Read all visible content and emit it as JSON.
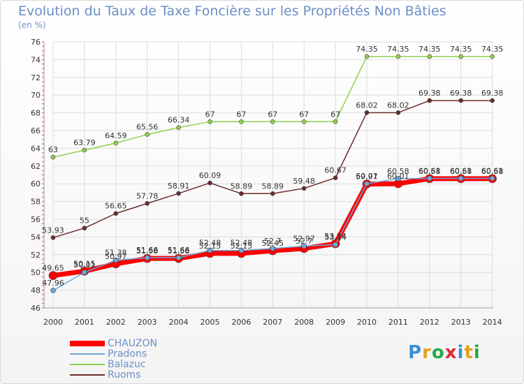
{
  "header": {
    "title": "Evolution du Taux de Taxe Foncière sur les Propriétés Non Bâties",
    "unit": "(en %)"
  },
  "logo": {
    "text": "Proxiti"
  },
  "chart_data": {
    "type": "line",
    "title": "Evolution du Taux de Taxe Foncière sur les Propriétés Non Bâties",
    "ylabel": "(en %)",
    "xlabel": "",
    "ylim": [
      46,
      76
    ],
    "yticks": [
      46,
      48,
      50,
      52,
      54,
      56,
      58,
      60,
      62,
      64,
      66,
      68,
      70,
      72,
      74,
      76
    ],
    "categories": [
      "2000",
      "2001",
      "2002",
      "2003",
      "2004",
      "2005",
      "2006",
      "2007",
      "2008",
      "2009",
      "2010",
      "2011",
      "2012",
      "2013",
      "2014"
    ],
    "series": [
      {
        "name": "CHAUZON",
        "color": "#ff0000",
        "values": [
          49.65,
          50.15,
          50.97,
          51.58,
          51.58,
          52.15,
          52.15,
          52.45,
          52.7,
          53.24,
          59.97,
          60.01,
          60.58,
          60.58,
          60.58
        ],
        "labels": [
          "49.65",
          "50.15",
          "50.97",
          "51.58",
          "51.58",
          "52.15",
          "52.15",
          "52.45",
          "52.7",
          "53.24",
          "59.97",
          "60.01",
          "60.58",
          "60.58",
          "60.58"
        ]
      },
      {
        "name": "Pradons",
        "color": "#6fa8dc",
        "values": [
          47.96,
          50.01,
          51.38,
          51.66,
          51.66,
          52.48,
          52.48,
          52.7,
          52.97,
          53.14,
          60.01,
          60.58,
          60.61,
          60.61,
          60.61
        ],
        "labels": [
          "47.96",
          "50.01",
          "51.38",
          "51.66",
          "51.66",
          "52.48",
          "52.48",
          "52.7",
          "52.97",
          "53.14",
          "60.01",
          "60.58",
          "60.61",
          "60.61",
          "60.61"
        ]
      },
      {
        "name": "Balazuc",
        "color": "#8fd14f",
        "values": [
          63,
          63.79,
          64.59,
          65.56,
          66.34,
          67,
          67,
          67,
          67,
          67,
          74.35,
          74.35,
          74.35,
          74.35,
          74.35
        ],
        "labels": [
          "63",
          "63.79",
          "64.59",
          "65.56",
          "66.34",
          "67",
          "67",
          "67",
          "67",
          "67",
          "74.35",
          "74.35",
          "74.35",
          "74.35",
          "74.35"
        ]
      },
      {
        "name": "Ruoms",
        "color": "#6b2b2b",
        "values": [
          53.93,
          55,
          56.65,
          57.78,
          58.91,
          60.09,
          58.89,
          58.89,
          59.48,
          60.67,
          68.02,
          68.02,
          69.38,
          69.38,
          69.38
        ],
        "labels": [
          "53.93",
          "55",
          "56.65",
          "57.78",
          "58.91",
          "60.09",
          "58.89",
          "58.89",
          "59.48",
          "60.67",
          "68.02",
          "68.02",
          "69.38",
          "69.38",
          "69.38"
        ]
      }
    ],
    "legend": [
      "CHAUZON",
      "Pradons",
      "Balazuc",
      "Ruoms"
    ]
  }
}
